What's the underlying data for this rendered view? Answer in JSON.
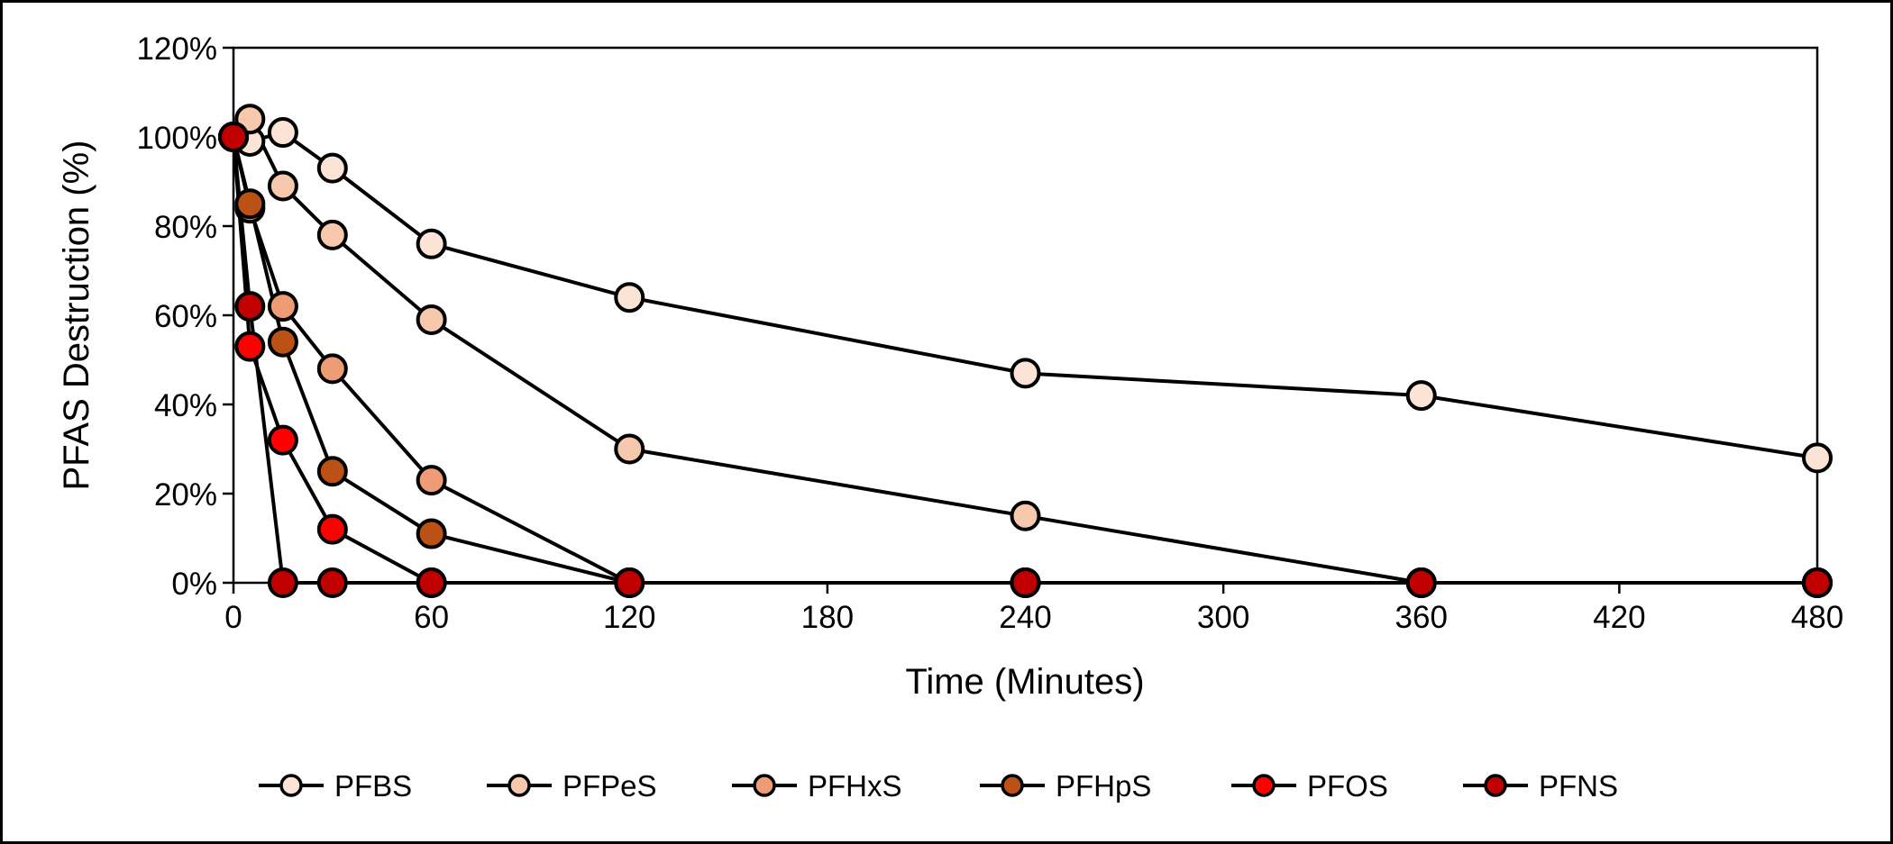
{
  "chart_data": {
    "type": "line",
    "xlabel": "Time (Minutes)",
    "ylabel": "PFAS Destruction (%)",
    "xlim": [
      0,
      480
    ],
    "ylim": [
      0,
      120
    ],
    "x_ticks": [
      0,
      60,
      120,
      180,
      240,
      300,
      360,
      420,
      480
    ],
    "x_tick_labels": [
      "0",
      "60",
      "120",
      "180",
      "240",
      "300",
      "360",
      "420",
      "480"
    ],
    "y_ticks": [
      0,
      20,
      40,
      60,
      80,
      100,
      120
    ],
    "y_tick_labels": [
      "0%",
      "20%",
      "40%",
      "60%",
      "80%",
      "100%",
      "120%"
    ],
    "grid": false,
    "legend_position": "bottom",
    "series": [
      {
        "name": "PFBS",
        "color": "#fbe3d6",
        "x": [
          0,
          5,
          15,
          30,
          60,
          120,
          240,
          360,
          480
        ],
        "y": [
          100,
          99,
          101,
          93,
          76,
          64,
          47,
          42,
          28
        ]
      },
      {
        "name": "PFPeS",
        "color": "#f6c9ae",
        "x": [
          0,
          5,
          15,
          30,
          60,
          120,
          240,
          360,
          480
        ],
        "y": [
          100,
          104,
          89,
          78,
          59,
          30,
          15,
          0,
          0
        ]
      },
      {
        "name": "PFHxS",
        "color": "#ee9c75",
        "x": [
          0,
          5,
          15,
          30,
          60,
          120,
          240,
          360,
          480
        ],
        "y": [
          100,
          84,
          62,
          48,
          23,
          0,
          0,
          0,
          0
        ]
      },
      {
        "name": "PFHpS",
        "color": "#bb5115",
        "x": [
          0,
          5,
          15,
          30,
          60,
          120,
          240,
          360,
          480
        ],
        "y": [
          100,
          85,
          54,
          25,
          11,
          0,
          0,
          0,
          0
        ]
      },
      {
        "name": "PFOS",
        "color": "#ff0000",
        "x": [
          0,
          5,
          15,
          30,
          60,
          120,
          240,
          360,
          480
        ],
        "y": [
          100,
          53,
          32,
          12,
          0,
          0,
          0,
          0,
          0
        ]
      },
      {
        "name": "PFNS",
        "color": "#c00000",
        "x": [
          0,
          5,
          15,
          30,
          60,
          120,
          240,
          360,
          480
        ],
        "y": [
          100,
          62,
          0,
          0,
          0,
          0,
          0,
          0,
          0
        ]
      }
    ]
  }
}
